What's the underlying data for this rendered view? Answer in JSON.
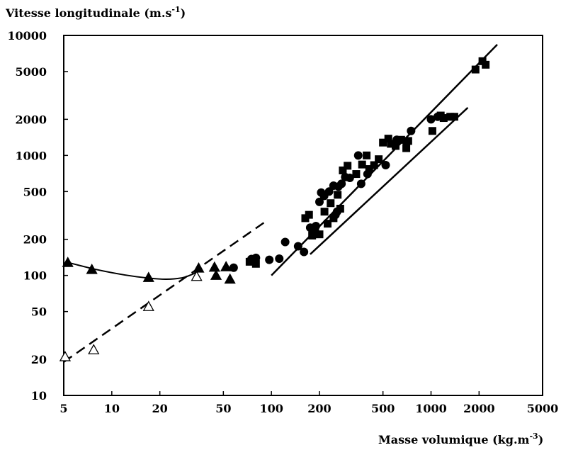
{
  "chart_data": {
    "type": "scatter",
    "title": "",
    "ylabel_base": "Vitesse longitudinale (m.s",
    "ylabel_exp": "-1",
    "ylabel_close": ")",
    "xlabel_base": "Masse volumique (kg.m",
    "xlabel_exp": "-3",
    "xlabel_close": ")",
    "xscale": "log",
    "yscale": "log",
    "xlim": [
      5,
      5000
    ],
    "ylim": [
      10,
      10000
    ],
    "grid": false,
    "x_ticks": [
      {
        "v": 5,
        "label": "5"
      },
      {
        "v": 10,
        "label": "10"
      },
      {
        "v": 20,
        "label": "20"
      },
      {
        "v": 50,
        "label": "50"
      },
      {
        "v": 100,
        "label": "100"
      },
      {
        "v": 200,
        "label": "200"
      },
      {
        "v": 500,
        "label": "500"
      },
      {
        "v": 1000,
        "label": "1000"
      },
      {
        "v": 2000,
        "label": "2000"
      },
      {
        "v": 5000,
        "label": "5000"
      }
    ],
    "y_ticks": [
      {
        "v": 10,
        "label": "10"
      },
      {
        "v": 20,
        "label": "20"
      },
      {
        "v": 50,
        "label": "50"
      },
      {
        "v": 100,
        "label": "100"
      },
      {
        "v": 200,
        "label": "200"
      },
      {
        "v": 500,
        "label": "500"
      },
      {
        "v": 1000,
        "label": "1000"
      },
      {
        "v": 2000,
        "label": "2000"
      },
      {
        "v": 5000,
        "label": "5000"
      },
      {
        "v": 10000,
        "label": "10000"
      }
    ],
    "series": [
      {
        "marker": "triangle-filled",
        "points": [
          [
            5.3,
            128
          ],
          [
            7.5,
            112
          ],
          [
            17,
            96
          ],
          [
            35,
            115
          ],
          [
            44,
            117
          ],
          [
            45,
            100
          ],
          [
            52,
            118
          ],
          [
            55,
            93
          ]
        ]
      },
      {
        "marker": "triangle-open",
        "points": [
          [
            5.1,
            21
          ],
          [
            7.7,
            24
          ],
          [
            17,
            55
          ],
          [
            34,
            98
          ]
        ]
      },
      {
        "marker": "circle",
        "points": [
          [
            58,
            116
          ],
          [
            75,
            137
          ],
          [
            80,
            140
          ],
          [
            97,
            135
          ],
          [
            112,
            138
          ],
          [
            122,
            190
          ],
          [
            147,
            175
          ],
          [
            160,
            157
          ],
          [
            175,
            250
          ],
          [
            190,
            258
          ],
          [
            200,
            410
          ],
          [
            205,
            490
          ],
          [
            214,
            460
          ],
          [
            230,
            500
          ],
          [
            245,
            560
          ],
          [
            252,
            320
          ],
          [
            258,
            340
          ],
          [
            263,
            550
          ],
          [
            275,
            580
          ],
          [
            290,
            660
          ],
          [
            310,
            650
          ],
          [
            350,
            1000
          ],
          [
            365,
            580
          ],
          [
            400,
            700
          ],
          [
            520,
            830
          ],
          [
            610,
            1350
          ],
          [
            700,
            1300
          ],
          [
            750,
            1600
          ],
          [
            1000,
            2000
          ],
          [
            1100,
            2100
          ]
        ]
      },
      {
        "marker": "square",
        "points": [
          [
            73,
            130
          ],
          [
            80,
            125
          ],
          [
            163,
            300
          ],
          [
            172,
            320
          ],
          [
            180,
            215
          ],
          [
            188,
            240
          ],
          [
            200,
            220
          ],
          [
            215,
            340
          ],
          [
            225,
            270
          ],
          [
            235,
            400
          ],
          [
            245,
            300
          ],
          [
            260,
            470
          ],
          [
            270,
            360
          ],
          [
            280,
            750
          ],
          [
            300,
            820
          ],
          [
            340,
            700
          ],
          [
            370,
            840
          ],
          [
            395,
            1000
          ],
          [
            410,
            770
          ],
          [
            440,
            830
          ],
          [
            470,
            930
          ],
          [
            500,
            1280
          ],
          [
            540,
            1380
          ],
          [
            560,
            1250
          ],
          [
            600,
            1200
          ],
          [
            650,
            1350
          ],
          [
            700,
            1150
          ],
          [
            720,
            1320
          ],
          [
            1020,
            1600
          ],
          [
            1150,
            2150
          ],
          [
            1200,
            2050
          ],
          [
            1320,
            2100
          ],
          [
            1400,
            2100
          ],
          [
            1900,
            5200
          ],
          [
            2100,
            6100
          ],
          [
            2200,
            5700
          ]
        ]
      }
    ],
    "lines": [
      {
        "style": "solid-curve",
        "points": [
          [
            5.1,
            130
          ],
          [
            8,
            112
          ],
          [
            12,
            101
          ],
          [
            17,
            95
          ],
          [
            22,
            93
          ],
          [
            28,
            96
          ],
          [
            34,
            106
          ]
        ]
      },
      {
        "style": "dashed",
        "points": [
          [
            5,
            19
          ],
          [
            95,
            290
          ]
        ]
      },
      {
        "style": "solid",
        "points": [
          [
            100,
            100
          ],
          [
            2600,
            8400
          ]
        ]
      },
      {
        "style": "solid",
        "points": [
          [
            175,
            150
          ],
          [
            1700,
            2500
          ]
        ]
      }
    ]
  }
}
